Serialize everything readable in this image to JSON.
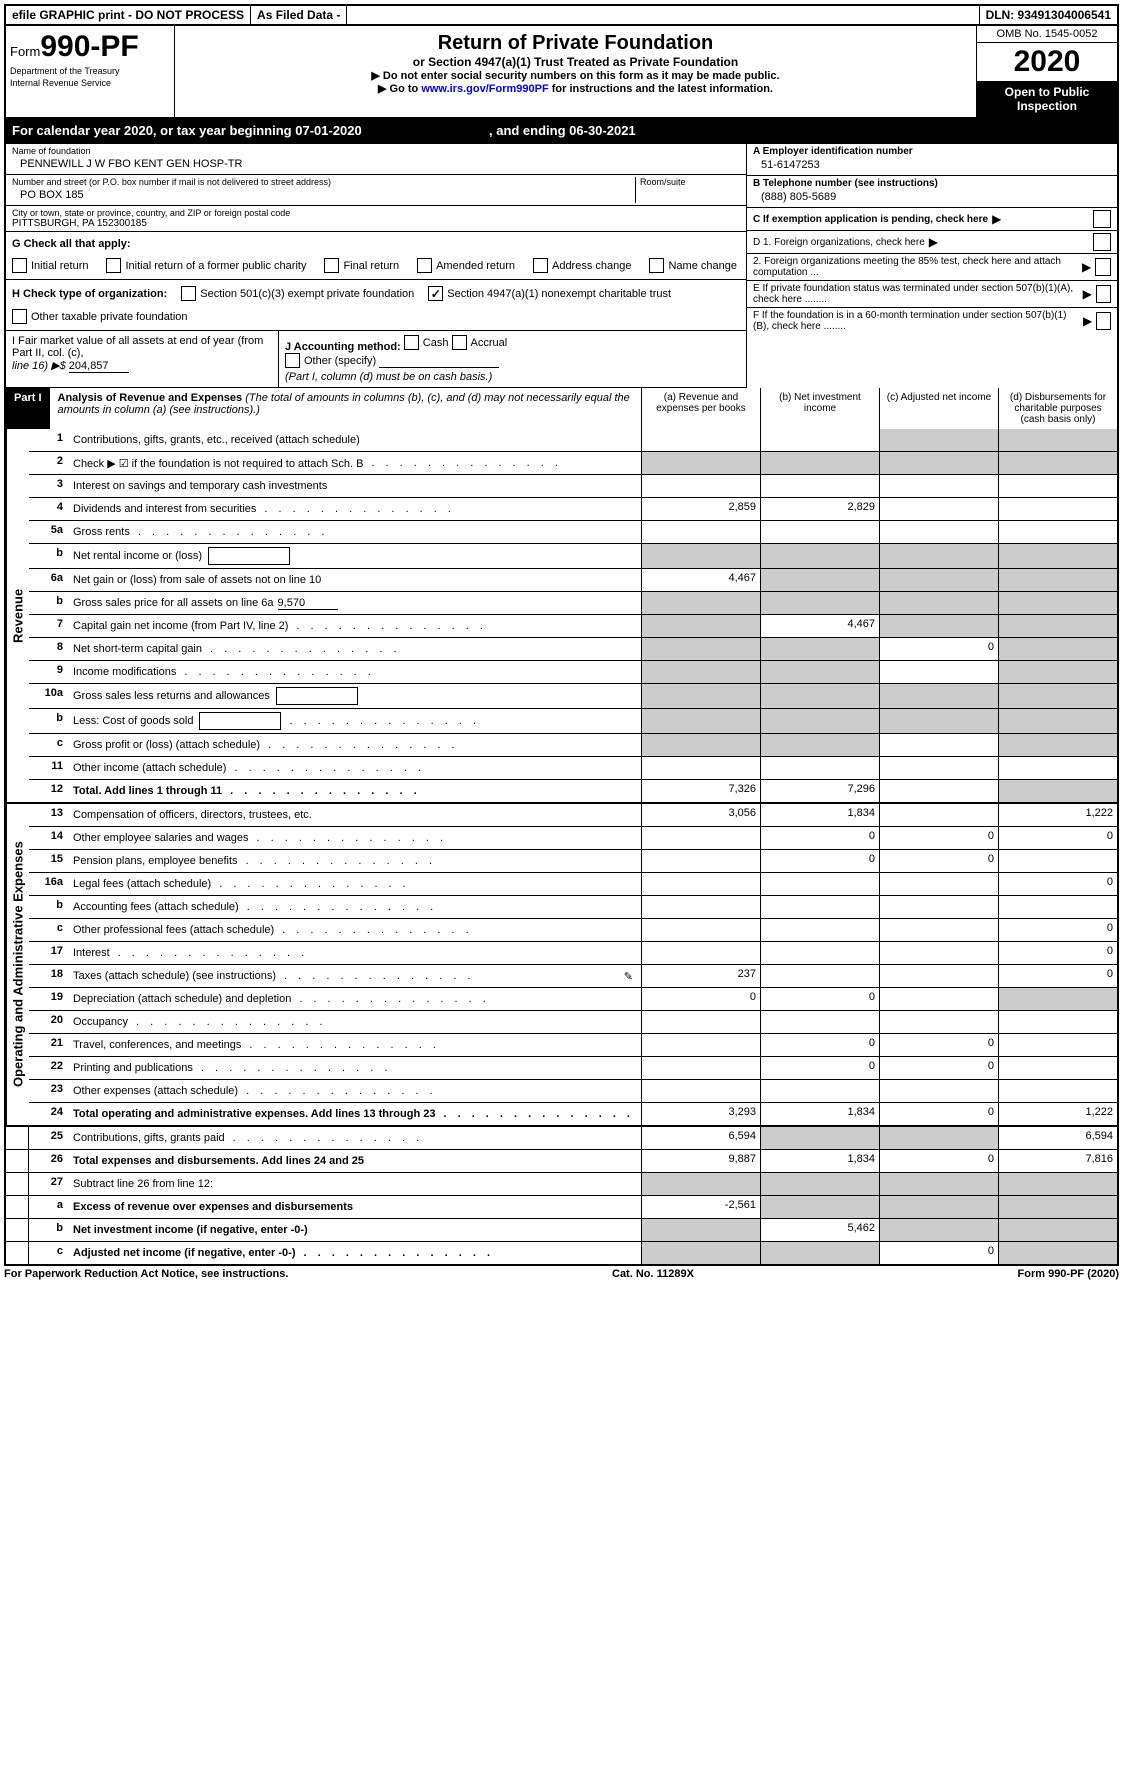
{
  "top": {
    "efile": "efile GRAPHIC print - DO NOT PROCESS",
    "asfiled": "As Filed Data -",
    "dln": "DLN: 93491304006541"
  },
  "header": {
    "form_word": "Form",
    "form_num": "990-PF",
    "dept1": "Department of the Treasury",
    "dept2": "Internal Revenue Service",
    "title": "Return of Private Foundation",
    "subtitle": "or Section 4947(a)(1) Trust Treated as Private Foundation",
    "instr1": "▶ Do not enter social security numbers on this form as it may be made public.",
    "instr2a": "▶ Go to ",
    "instr2b": "www.irs.gov/Form990PF",
    "instr2c": " for instructions and the latest information.",
    "omb": "OMB No. 1545-0052",
    "year": "2020",
    "open": "Open to Public Inspection"
  },
  "cal_year": {
    "prefix": "For calendar year 2020, or tax year beginning ",
    "begin": "07-01-2020",
    "mid": " , and ending ",
    "end": "06-30-2021"
  },
  "id": {
    "name_label": "Name of foundation",
    "name": "PENNEWILL J W FBO KENT GEN HOSP-TR",
    "addr_label": "Number and street (or P.O. box number if mail is not delivered to street address)",
    "room_label": "Room/suite",
    "addr": "PO BOX 185",
    "city_label": "City or town, state or province, country, and ZIP or foreign postal code",
    "city": "PITTSBURGH, PA  152300185",
    "a_label": "A Employer identification number",
    "a_val": "51-6147253",
    "b_label": "B Telephone number (see instructions)",
    "b_val": "(888) 805-5689",
    "c_label": "C If exemption application is pending, check here"
  },
  "g": {
    "label": "G Check all that apply:",
    "opts": [
      "Initial return",
      "Initial return of a former public charity",
      "Final return",
      "Amended return",
      "Address change",
      "Name change"
    ]
  },
  "h": {
    "label": "H Check type of organization:",
    "o1": "Section 501(c)(3) exempt private foundation",
    "o2": "Section 4947(a)(1) nonexempt charitable trust",
    "o3": "Other taxable private foundation"
  },
  "d": {
    "d1": "D 1. Foreign organizations, check here",
    "d2": "2. Foreign organizations meeting the 85% test, check here and attach computation ...",
    "e": "E  If private foundation status was terminated under section 507(b)(1)(A), check here ........",
    "f": "F  If the foundation is in a 60-month termination under section 507(b)(1)(B), check here ........"
  },
  "ij": {
    "i1": "I Fair market value of all assets at end of year (from Part II, col. (c),",
    "i2": "line 16) ▶$ ",
    "i_val": "204,857",
    "j": "J Accounting method:",
    "cash": "Cash",
    "accrual": "Accrual",
    "other": "Other (specify)",
    "note": "(Part I, column (d) must be on cash basis.)"
  },
  "part1": {
    "num": "Part I",
    "title": "Analysis of Revenue and Expenses",
    "paren": " (The total of amounts in columns (b), (c), and (d) may not necessarily equal the amounts in column (a) (see instructions).)",
    "cols": {
      "a": "(a) Revenue and expenses per books",
      "b": "(b) Net investment income",
      "c": "(c) Adjusted net income",
      "d": "(d) Disbursements for charitable purposes (cash basis only)"
    }
  },
  "sides": {
    "rev": "Revenue",
    "exp": "Operating and Administrative Expenses"
  },
  "rows": [
    {
      "n": "1",
      "d": "Contributions, gifts, grants, etc., received (attach schedule)",
      "a": "",
      "b": "",
      "c": "",
      "dd": "",
      "sa": false,
      "sb": false,
      "sc": true,
      "sd": true
    },
    {
      "n": "2",
      "d": "Check ▶ ☑ if the foundation is not required to attach Sch. B",
      "dots": true,
      "a": "",
      "b": "",
      "c": "",
      "dd": "",
      "sa": true,
      "sb": true,
      "sc": true,
      "sd": true
    },
    {
      "n": "3",
      "d": "Interest on savings and temporary cash investments",
      "a": "",
      "b": "",
      "c": "",
      "dd": ""
    },
    {
      "n": "4",
      "d": "Dividends and interest from securities",
      "dots": true,
      "a": "2,859",
      "b": "2,829",
      "c": "",
      "dd": ""
    },
    {
      "n": "5a",
      "d": "Gross rents",
      "dots": true,
      "a": "",
      "b": "",
      "c": "",
      "dd": ""
    },
    {
      "n": "b",
      "d": "Net rental income or (loss)",
      "box": true,
      "a": "",
      "b": "",
      "c": "",
      "dd": "",
      "sa": true,
      "sb": true,
      "sc": true,
      "sd": true
    },
    {
      "n": "6a",
      "d": "Net gain or (loss) from sale of assets not on line 10",
      "a": "4,467",
      "b": "",
      "c": "",
      "dd": "",
      "sb": true,
      "sc": true,
      "sd": true
    },
    {
      "n": "b",
      "d": "Gross sales price for all assets on line 6a",
      "uval": "9,570",
      "a": "",
      "b": "",
      "c": "",
      "dd": "",
      "sa": true,
      "sb": true,
      "sc": true,
      "sd": true
    },
    {
      "n": "7",
      "d": "Capital gain net income (from Part IV, line 2)",
      "dots": true,
      "a": "",
      "b": "4,467",
      "c": "",
      "dd": "",
      "sa": true,
      "sc": true,
      "sd": true
    },
    {
      "n": "8",
      "d": "Net short-term capital gain",
      "dots": true,
      "a": "",
      "b": "",
      "c": "0",
      "dd": "",
      "sa": true,
      "sb": true,
      "sd": true
    },
    {
      "n": "9",
      "d": "Income modifications",
      "dots": true,
      "a": "",
      "b": "",
      "c": "",
      "dd": "",
      "sa": true,
      "sb": true,
      "sd": true
    },
    {
      "n": "10a",
      "d": "Gross sales less returns and allowances",
      "box": true,
      "a": "",
      "b": "",
      "c": "",
      "dd": "",
      "sa": true,
      "sb": true,
      "sc": true,
      "sd": true
    },
    {
      "n": "b",
      "d": "Less: Cost of goods sold",
      "dots": true,
      "box": true,
      "a": "",
      "b": "",
      "c": "",
      "dd": "",
      "sa": true,
      "sb": true,
      "sc": true,
      "sd": true
    },
    {
      "n": "c",
      "d": "Gross profit or (loss) (attach schedule)",
      "dots": true,
      "a": "",
      "b": "",
      "c": "",
      "dd": "",
      "sa": true,
      "sb": true,
      "sd": true
    },
    {
      "n": "11",
      "d": "Other income (attach schedule)",
      "dots": true,
      "a": "",
      "b": "",
      "c": "",
      "dd": ""
    },
    {
      "n": "12",
      "d": "Total. Add lines 1 through 11",
      "dots": true,
      "bold": true,
      "a": "7,326",
      "b": "7,296",
      "c": "",
      "dd": "",
      "sd": true
    },
    {
      "n": "13",
      "d": "Compensation of officers, directors, trustees, etc.",
      "a": "3,056",
      "b": "1,834",
      "c": "",
      "dd": "1,222"
    },
    {
      "n": "14",
      "d": "Other employee salaries and wages",
      "dots": true,
      "a": "",
      "b": "0",
      "c": "0",
      "dd": "0"
    },
    {
      "n": "15",
      "d": "Pension plans, employee benefits",
      "dots": true,
      "a": "",
      "b": "0",
      "c": "0",
      "dd": ""
    },
    {
      "n": "16a",
      "d": "Legal fees (attach schedule)",
      "dots": true,
      "a": "",
      "b": "",
      "c": "",
      "dd": "0"
    },
    {
      "n": "b",
      "d": "Accounting fees (attach schedule)",
      "dots": true,
      "a": "",
      "b": "",
      "c": "",
      "dd": ""
    },
    {
      "n": "c",
      "d": "Other professional fees (attach schedule)",
      "dots": true,
      "a": "",
      "b": "",
      "c": "",
      "dd": "0"
    },
    {
      "n": "17",
      "d": "Interest",
      "dots": true,
      "a": "",
      "b": "",
      "c": "",
      "dd": "0"
    },
    {
      "n": "18",
      "d": "Taxes (attach schedule) (see instructions)",
      "dots": true,
      "icon": true,
      "a": "237",
      "b": "",
      "c": "",
      "dd": "0"
    },
    {
      "n": "19",
      "d": "Depreciation (attach schedule) and depletion",
      "dots": true,
      "a": "0",
      "b": "0",
      "c": "",
      "dd": "",
      "sd": true
    },
    {
      "n": "20",
      "d": "Occupancy",
      "dots": true,
      "a": "",
      "b": "",
      "c": "",
      "dd": ""
    },
    {
      "n": "21",
      "d": "Travel, conferences, and meetings",
      "dots": true,
      "a": "",
      "b": "0",
      "c": "0",
      "dd": ""
    },
    {
      "n": "22",
      "d": "Printing and publications",
      "dots": true,
      "a": "",
      "b": "0",
      "c": "0",
      "dd": ""
    },
    {
      "n": "23",
      "d": "Other expenses (attach schedule)",
      "dots": true,
      "a": "",
      "b": "",
      "c": "",
      "dd": ""
    },
    {
      "n": "24",
      "d": "Total operating and administrative expenses. Add lines 13 through 23",
      "dots": true,
      "bold": true,
      "a": "3,293",
      "b": "1,834",
      "c": "0",
      "dd": "1,222"
    },
    {
      "n": "25",
      "d": "Contributions, gifts, grants paid",
      "dots": true,
      "a": "6,594",
      "b": "",
      "c": "",
      "dd": "6,594",
      "sb": true,
      "sc": true
    },
    {
      "n": "26",
      "d": "Total expenses and disbursements. Add lines 24 and 25",
      "bold": true,
      "a": "9,887",
      "b": "1,834",
      "c": "0",
      "dd": "7,816"
    },
    {
      "n": "27",
      "d": "Subtract line 26 from line 12:",
      "a": "",
      "b": "",
      "c": "",
      "dd": "",
      "sa": true,
      "sb": true,
      "sc": true,
      "sd": true
    },
    {
      "n": "a",
      "d": "Excess of revenue over expenses and disbursements",
      "bold": true,
      "a": "-2,561",
      "b": "",
      "c": "",
      "dd": "",
      "sb": true,
      "sc": true,
      "sd": true
    },
    {
      "n": "b",
      "d": "Net investment income (if negative, enter -0-)",
      "bold": true,
      "a": "",
      "b": "5,462",
      "c": "",
      "dd": "",
      "sa": true,
      "sc": true,
      "sd": true
    },
    {
      "n": "c",
      "d": "Adjusted net income (if negative, enter -0-)",
      "dots": true,
      "bold": true,
      "a": "",
      "b": "",
      "c": "0",
      "dd": "",
      "sa": true,
      "sb": true,
      "sd": true
    }
  ],
  "footer": {
    "left": "For Paperwork Reduction Act Notice, see instructions.",
    "mid": "Cat. No. 11289X",
    "right": "Form 990-PF (2020)"
  }
}
